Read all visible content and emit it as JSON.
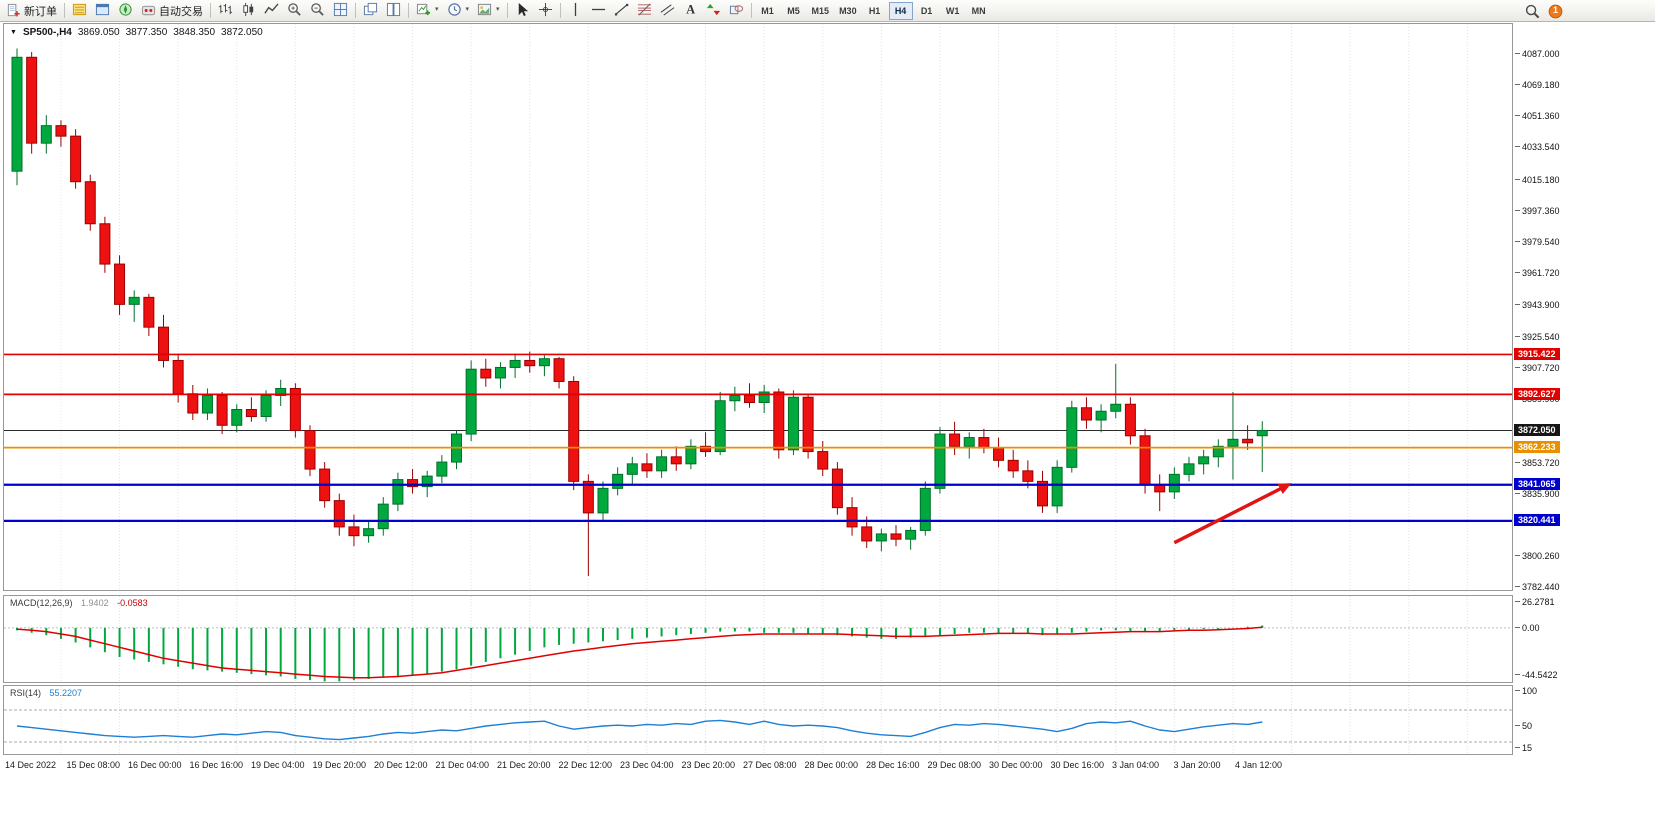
{
  "toolbar": {
    "new_order_label": "新订单",
    "algo_trading_label": "自动交易",
    "timeframes": [
      "M1",
      "M5",
      "M15",
      "M30",
      "H1",
      "H4",
      "D1",
      "W1",
      "MN"
    ],
    "active_timeframe": "H4",
    "notification_count": "1",
    "icon_groups": {
      "system": [
        "market-watch",
        "data-window",
        "navigator"
      ],
      "chart_types": [
        "bar-chart",
        "candlestick-chart",
        "line-chart"
      ],
      "zoom": [
        "zoom-in",
        "zoom-out",
        "auto-arrange"
      ],
      "windows": [
        "window-cascade",
        "window-tile"
      ],
      "dropdowns": [
        "new-chart",
        "periods",
        "templates"
      ],
      "pointer": [
        "cursor",
        "crosshair"
      ],
      "objects": [
        "vertical-line",
        "horizontal-line",
        "trendline",
        "fibonacci",
        "equidistant-channel",
        "text-label",
        "arrows",
        "shapes"
      ],
      "right": [
        "search",
        "notifications"
      ]
    }
  },
  "chart": {
    "header": {
      "symbol_period": "SP500-,H4",
      "open": "3869.050",
      "high": "3877.350",
      "low": "3848.350",
      "close": "3872.050"
    },
    "price_axis_labels": [
      "4087.000",
      "4069.180",
      "4051.360",
      "4033.540",
      "4015.180",
      "3997.360",
      "3979.540",
      "3961.720",
      "3943.900",
      "3925.540",
      "3907.720",
      "3889.900",
      "3853.720",
      "3835.900",
      "3800.260",
      "3782.440"
    ],
    "time_axis_labels": [
      "14 Dec 2022",
      "15 Dec 08:00",
      "16 Dec 00:00",
      "16 Dec 16:00",
      "19 Dec 04:00",
      "19 Dec 20:00",
      "20 Dec 12:00",
      "21 Dec 04:00",
      "21 Dec 20:00",
      "22 Dec 12:00",
      "23 Dec 04:00",
      "23 Dec 20:00",
      "27 Dec 08:00",
      "28 Dec 00:00",
      "28 Dec 16:00",
      "29 Dec 08:00",
      "30 Dec 00:00",
      "30 Dec 16:00",
      "3 Jan 04:00",
      "3 Jan 20:00",
      "4 Jan 12:00"
    ],
    "badges": [
      {
        "text": "3915.422",
        "price": 3915.422,
        "color": "#e00000"
      },
      {
        "text": "3892.627",
        "price": 3892.627,
        "color": "#e00000"
      },
      {
        "text": "3872.050",
        "price": 3872.05,
        "color": "#161616"
      },
      {
        "text": "3862.233",
        "price": 3862.233,
        "color": "#e89000"
      },
      {
        "text": "3841.065",
        "price": 3841.065,
        "color": "#0000cc"
      },
      {
        "text": "3820.441",
        "price": 3820.441,
        "color": "#0000cc"
      }
    ]
  },
  "chart_data": {
    "type": "candlest​ick",
    "symbol": "SP500-",
    "timeframe": "H4",
    "current_ohlc": {
      "open": 3869.05,
      "high": 3877.35,
      "low": 3848.35,
      "close": 3872.05
    },
    "price_range": [
      3781,
      4104
    ],
    "colors": {
      "up_fill": "#00a83e",
      "up_border": "#00702a",
      "down_fill": "#ee1111",
      "down_border": "#9c0000",
      "macd_hist": "#00a83e",
      "macd_signal": "#e00000",
      "rsi_line": "#1e7fd6",
      "arrow": "#e01414"
    },
    "candles": [
      [
        4020,
        4090,
        4012,
        4085
      ],
      [
        4085,
        4088,
        4030,
        4036
      ],
      [
        4036,
        4052,
        4030,
        4046
      ],
      [
        4046,
        4049,
        4034,
        4040
      ],
      [
        4040,
        4044,
        4010,
        4014
      ],
      [
        4014,
        4018,
        3986,
        3990
      ],
      [
        3990,
        3994,
        3962,
        3967
      ],
      [
        3967,
        3972,
        3938,
        3944
      ],
      [
        3944,
        3952,
        3934,
        3948
      ],
      [
        3948,
        3950,
        3926,
        3931
      ],
      [
        3931,
        3938,
        3908,
        3912
      ],
      [
        3912,
        3916,
        3888,
        3893
      ],
      [
        3893,
        3898,
        3878,
        3882
      ],
      [
        3882,
        3896,
        3878,
        3892
      ],
      [
        3892,
        3894,
        3870,
        3875
      ],
      [
        3875,
        3887,
        3871,
        3884
      ],
      [
        3884,
        3891,
        3877,
        3880
      ],
      [
        3880,
        3895,
        3877,
        3892
      ],
      [
        3892,
        3901,
        3886,
        3896
      ],
      [
        3896,
        3899,
        3868,
        3872
      ],
      [
        3872,
        3875,
        3846,
        3850
      ],
      [
        3850,
        3854,
        3828,
        3832
      ],
      [
        3832,
        3836,
        3812,
        3817
      ],
      [
        3817,
        3824,
        3806,
        3812
      ],
      [
        3812,
        3820,
        3808,
        3816
      ],
      [
        3816,
        3834,
        3812,
        3830
      ],
      [
        3830,
        3848,
        3826,
        3844
      ],
      [
        3844,
        3850,
        3836,
        3840
      ],
      [
        3840,
        3849,
        3834,
        3846
      ],
      [
        3846,
        3858,
        3842,
        3854
      ],
      [
        3854,
        3872,
        3850,
        3870
      ],
      [
        3870,
        3912,
        3866,
        3907
      ],
      [
        3907,
        3913,
        3897,
        3902
      ],
      [
        3902,
        3911,
        3896,
        3908
      ],
      [
        3908,
        3916,
        3902,
        3912
      ],
      [
        3912,
        3917,
        3905,
        3909
      ],
      [
        3909,
        3915,
        3903,
        3913
      ],
      [
        3913,
        3914,
        3896,
        3900
      ],
      [
        3900,
        3903,
        3838,
        3843
      ],
      [
        3843,
        3847,
        3789,
        3825
      ],
      [
        3825,
        3843,
        3820,
        3839
      ],
      [
        3839,
        3851,
        3835,
        3847
      ],
      [
        3847,
        3857,
        3841,
        3853
      ],
      [
        3853,
        3859,
        3845,
        3849
      ],
      [
        3849,
        3861,
        3845,
        3857
      ],
      [
        3857,
        3863,
        3849,
        3853
      ],
      [
        3853,
        3867,
        3850,
        3863
      ],
      [
        3863,
        3871,
        3857,
        3860
      ],
      [
        3860,
        3894,
        3858,
        3889
      ],
      [
        3889,
        3897,
        3883,
        3892
      ],
      [
        3892,
        3899,
        3885,
        3888
      ],
      [
        3888,
        3898,
        3882,
        3894
      ],
      [
        3894,
        3896,
        3856,
        3861
      ],
      [
        3861,
        3895,
        3858,
        3891
      ],
      [
        3891,
        3893,
        3856,
        3860
      ],
      [
        3860,
        3866,
        3846,
        3850
      ],
      [
        3850,
        3854,
        3824,
        3828
      ],
      [
        3828,
        3834,
        3812,
        3817
      ],
      [
        3817,
        3823,
        3805,
        3809
      ],
      [
        3809,
        3816,
        3803,
        3813
      ],
      [
        3813,
        3818,
        3806,
        3810
      ],
      [
        3810,
        3817,
        3804,
        3815
      ],
      [
        3815,
        3843,
        3812,
        3839
      ],
      [
        3839,
        3874,
        3836,
        3870
      ],
      [
        3870,
        3877,
        3858,
        3863
      ],
      [
        3863,
        3871,
        3856,
        3868
      ],
      [
        3868,
        3873,
        3859,
        3862
      ],
      [
        3862,
        3868,
        3851,
        3855
      ],
      [
        3855,
        3861,
        3845,
        3849
      ],
      [
        3849,
        3855,
        3839,
        3843
      ],
      [
        3843,
        3849,
        3825,
        3829
      ],
      [
        3829,
        3855,
        3825,
        3851
      ],
      [
        3851,
        3889,
        3848,
        3885
      ],
      [
        3885,
        3891,
        3873,
        3878
      ],
      [
        3878,
        3887,
        3871,
        3883
      ],
      [
        3883,
        3910,
        3879,
        3887
      ],
      [
        3887,
        3891,
        3864,
        3869
      ],
      [
        3869,
        3873,
        3836,
        3841
      ],
      [
        3841,
        3847,
        3826,
        3837
      ],
      [
        3837,
        3851,
        3833,
        3847
      ],
      [
        3847,
        3857,
        3843,
        3853
      ],
      [
        3853,
        3861,
        3847,
        3857
      ],
      [
        3857,
        3867,
        3851,
        3863
      ],
      [
        3863,
        3894,
        3844,
        3867
      ],
      [
        3867,
        3875,
        3861,
        3865
      ],
      [
        3869.05,
        3877.35,
        3848.35,
        3872.05
      ]
    ],
    "horizontal_lines": [
      {
        "price": 3915.422,
        "color": "#e00000"
      },
      {
        "price": 3892.627,
        "color": "#e00000"
      },
      {
        "price": 3862.233,
        "color": "#e89000"
      },
      {
        "price": 3841.065,
        "color": "#0000cc"
      },
      {
        "price": 3820.441,
        "color": "#0000cc"
      }
    ],
    "current_price_line": 3872.05,
    "arrow_annotation": {
      "from_index": 79,
      "from_price": 3808,
      "to_index": 87,
      "to_price": 3842
    },
    "indicators": [
      {
        "name": "MACD",
        "label": "MACD(12,26,9)",
        "values_label": [
          "1.9402",
          "-0.0583"
        ],
        "scale_labels": [
          "26.2781",
          "0.00",
          "-44.5422"
        ],
        "range": [
          -44.5422,
          26.2781
        ],
        "histogram": [
          -2,
          -4,
          -6,
          -9,
          -12,
          -16,
          -20,
          -24,
          -26,
          -28,
          -30,
          -32,
          -34,
          -35,
          -36,
          -37,
          -38,
          -39,
          -40,
          -42,
          -43,
          -44,
          -44,
          -43,
          -42,
          -41,
          -40,
          -39,
          -38,
          -36,
          -34,
          -31,
          -28,
          -25,
          -22,
          -19,
          -16,
          -14,
          -13,
          -12,
          -11,
          -10,
          -9,
          -8,
          -7,
          -6,
          -5,
          -4,
          -3,
          -3,
          -3,
          -4,
          -4,
          -4,
          -5,
          -5,
          -6,
          -7,
          -8,
          -9,
          -9,
          -8,
          -7,
          -6,
          -5,
          -4,
          -4,
          -4,
          -5,
          -5,
          -6,
          -5,
          -4,
          -3,
          -2,
          -2,
          -3,
          -3,
          -3,
          -2,
          -2,
          -1,
          -1,
          0,
          1,
          2
        ],
        "signal": [
          -1,
          -2,
          -3,
          -5,
          -7,
          -10,
          -13,
          -16,
          -19,
          -22,
          -25,
          -27,
          -29,
          -31,
          -33,
          -34,
          -35,
          -36,
          -37,
          -38,
          -39,
          -40,
          -40.5,
          -41,
          -41,
          -40.5,
          -40,
          -39,
          -38,
          -37,
          -35,
          -33,
          -31,
          -29,
          -27,
          -25,
          -23,
          -21,
          -19,
          -17.5,
          -16,
          -14.5,
          -13,
          -12,
          -11,
          -10,
          -9,
          -8,
          -7,
          -6,
          -5.5,
          -5,
          -5,
          -5,
          -5,
          -5,
          -5,
          -5.5,
          -6,
          -6.5,
          -7,
          -7,
          -7,
          -6.5,
          -6,
          -5.5,
          -5,
          -4.5,
          -4.5,
          -4.5,
          -5,
          -5,
          -5,
          -4.5,
          -4,
          -3.5,
          -3,
          -3,
          -3,
          -2.5,
          -2,
          -2,
          -1.5,
          -1,
          -0.5,
          0.5
        ]
      },
      {
        "name": "RSI",
        "label": "RSI(14)",
        "value_label": "55.2207",
        "scale_labels": [
          "100",
          "50",
          "15"
        ],
        "range": [
          15,
          100
        ],
        "levels": [
          70,
          30
        ],
        "values": [
          50,
          48,
          46,
          44,
          42,
          40,
          38,
          37,
          36,
          37,
          38,
          37,
          36,
          38,
          40,
          39,
          41,
          43,
          42,
          38,
          36,
          34,
          33,
          35,
          37,
          40,
          42,
          41,
          43,
          45,
          44,
          47,
          50,
          52,
          54,
          55,
          56,
          50,
          46,
          48,
          50,
          51,
          50,
          52,
          51,
          53,
          52,
          56,
          57,
          55,
          52,
          56,
          52,
          50,
          51,
          50,
          48,
          44,
          41,
          39,
          38,
          37,
          42,
          48,
          52,
          51,
          53,
          52,
          50,
          48,
          46,
          43,
          47,
          53,
          55,
          54,
          56,
          50,
          45,
          43,
          46,
          49,
          51,
          53,
          52,
          55
        ]
      }
    ]
  }
}
